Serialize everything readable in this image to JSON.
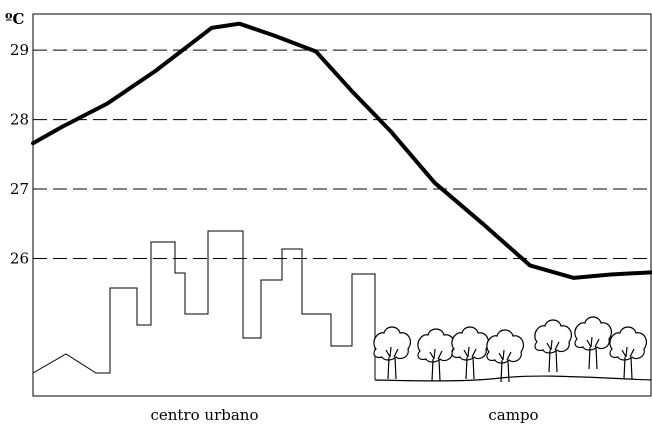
{
  "chart_data": {
    "type": "line",
    "unit_label": "ºC",
    "y_ticks": [
      29,
      28,
      27,
      26
    ],
    "ylim": [
      24.02,
      29.52
    ],
    "xlim": [
      0,
      100
    ],
    "grid": "horizontal-dashed",
    "x": [
      0,
      4.8,
      12.0,
      19.8,
      28.9,
      33.4,
      39.0,
      45.8,
      51.7,
      57.9,
      65.0,
      72.8,
      80.4,
      87.5,
      93.5,
      100
    ],
    "y": [
      27.66,
      27.9,
      28.23,
      28.7,
      29.32,
      29.38,
      29.21,
      28.98,
      28.4,
      27.83,
      27.09,
      26.5,
      25.9,
      25.72,
      25.77,
      25.8
    ],
    "regions": [
      {
        "label": "centro urbano",
        "from": 0,
        "to": 55.5
      },
      {
        "label": "campo",
        "from": 55.5,
        "to": 100
      }
    ],
    "colors": {
      "line": "#000000",
      "grid": "#000000",
      "frame": "#000000"
    }
  }
}
